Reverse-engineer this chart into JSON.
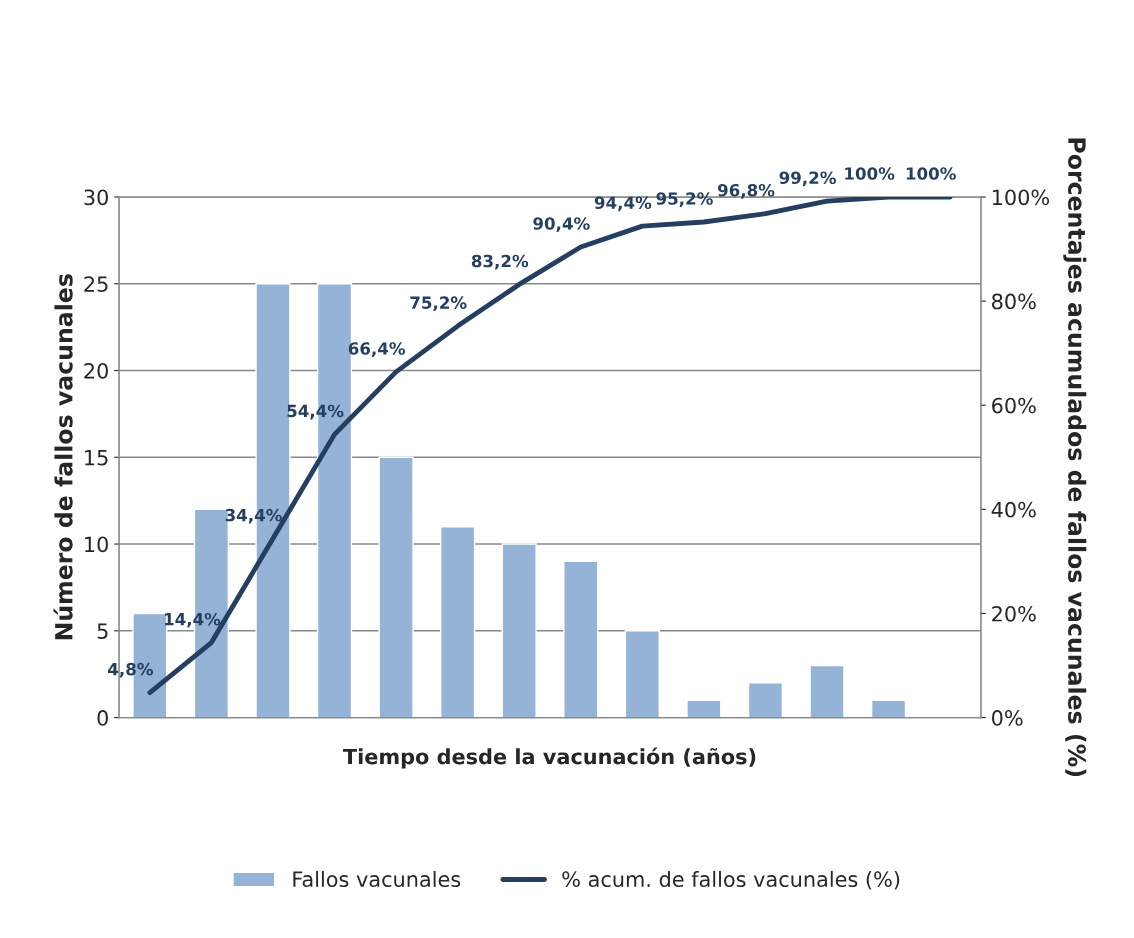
{
  "chart_data": {
    "type": "bar",
    "xlabel": "Tiempo desde la vacunación (años)",
    "ylabel": "Número de fallos vacunales",
    "y2label": "Porcentajes acumulados de fallos vacunales (%)",
    "categories": [
      null,
      null,
      null,
      null,
      null,
      null,
      null,
      null,
      null,
      null,
      null,
      null,
      null,
      null
    ],
    "series": [
      {
        "name": "Fallos vacunales",
        "color": "#95b3d7",
        "values": [
          6,
          12,
          25,
          25,
          15,
          11,
          10,
          9,
          5,
          1,
          2,
          3,
          1,
          null
        ]
      },
      {
        "name": "% acum. de fallos vacunales (%)",
        "type": "line",
        "axis": "y2",
        "color": "#243f60",
        "values": [
          4.8,
          14.4,
          34.4,
          54.4,
          66.4,
          75.2,
          83.2,
          90.4,
          94.4,
          95.2,
          96.8,
          99.2,
          100,
          100
        ],
        "value_labels": [
          "4,8%",
          "14,4%",
          "34,4%",
          "54,4%",
          "66,4%",
          "75,2%",
          "83,2%",
          "90,4%",
          "94,4%",
          "95,2%",
          "96,8%",
          "99,2%",
          "100%",
          "100%"
        ]
      }
    ],
    "ylim": [
      0,
      30
    ],
    "yticks": [
      0,
      5,
      10,
      15,
      20,
      25,
      30
    ],
    "y2lim": [
      0,
      100
    ],
    "y2ticks": [
      {
        "value": 0,
        "label": "0%"
      },
      {
        "value": 20,
        "label": "20%"
      },
      {
        "value": 40,
        "label": "40%"
      },
      {
        "value": 60,
        "label": "60%"
      },
      {
        "value": 80,
        "label": "80%"
      },
      {
        "value": 100,
        "label": "100%"
      }
    ],
    "grid": "y",
    "legend": "bottom",
    "marker": "none",
    "line_style": "solid"
  }
}
